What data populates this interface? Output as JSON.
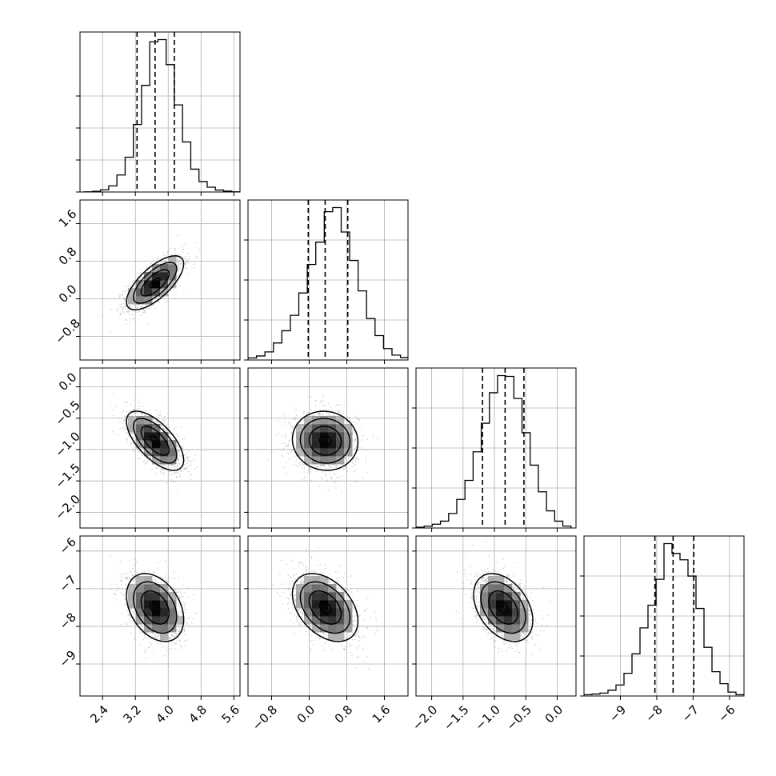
{
  "chart_data": {
    "type": "corner",
    "grid": true,
    "parameters": [
      {
        "range": [
          1.85,
          5.75
        ],
        "ticks": [
          2.4,
          3.2,
          4.0,
          4.8,
          5.6
        ],
        "tick_labels": [
          "2.4",
          "3.2",
          "4.0",
          "4.8",
          "5.6"
        ],
        "quantiles": [
          3.24,
          3.68,
          4.15
        ],
        "hist_bins": [
          1.95,
          2.15,
          2.35,
          2.55,
          2.75,
          2.95,
          3.15,
          3.35,
          3.55,
          3.75,
          3.95,
          4.15,
          4.35,
          4.55,
          4.75,
          4.95,
          5.15,
          5.35,
          5.55,
          5.75
        ],
        "hist_counts": [
          1,
          3,
          10,
          28,
          78,
          160,
          310,
          490,
          690,
          700,
          585,
          400,
          230,
          105,
          48,
          22,
          9,
          4,
          1
        ],
        "hist_ticks": [
          0.2,
          0.4,
          0.6
        ]
      },
      {
        "range": [
          -1.3,
          2.1
        ],
        "ticks": [
          -0.8,
          0.0,
          0.8,
          1.6
        ],
        "tick_labels": [
          "−0.8",
          "0.0",
          "0.8",
          "1.6"
        ],
        "quantiles": [
          -0.02,
          0.34,
          0.82
        ],
        "hist_bins": [
          -1.3,
          -1.12,
          -0.94,
          -0.76,
          -0.58,
          -0.4,
          -0.22,
          -0.04,
          0.14,
          0.32,
          0.5,
          0.68,
          0.86,
          1.04,
          1.22,
          1.4,
          1.58,
          1.76,
          1.94,
          2.12
        ],
        "hist_counts": [
          5,
          10,
          20,
          42,
          72,
          110,
          165,
          235,
          290,
          365,
          375,
          315,
          245,
          170,
          102,
          60,
          28,
          12,
          6
        ],
        "hist_ticks": [
          0.25,
          0.5,
          0.75
        ]
      },
      {
        "range": [
          -2.25,
          0.3
        ],
        "ticks": [
          -2.0,
          -1.5,
          -1.0,
          -0.5,
          0.0
        ],
        "tick_labels": [
          "−2.0",
          "−1.5",
          "−1.0",
          "−0.5",
          "0.0"
        ],
        "quantiles": [
          -1.19,
          -0.83,
          -0.53
        ],
        "hist_bins": [
          -2.25,
          -2.12,
          -1.99,
          -1.86,
          -1.73,
          -1.6,
          -1.47,
          -1.34,
          -1.21,
          -1.08,
          -0.95,
          -0.82,
          -0.69,
          -0.56,
          -0.43,
          -0.3,
          -0.17,
          -0.04,
          0.09,
          0.22
        ],
        "hist_counts": [
          2,
          5,
          10,
          18,
          38,
          75,
          125,
          200,
          275,
          355,
          400,
          398,
          340,
          250,
          165,
          95,
          45,
          18,
          5
        ],
        "hist_ticks": [
          0.25,
          0.5,
          0.75
        ]
      },
      {
        "range": [
          -10.0,
          -5.6
        ],
        "ticks": [
          -9,
          -8,
          -7,
          -6
        ],
        "tick_labels": [
          "−9",
          "−8",
          "−7",
          "−6"
        ],
        "ylim": [
          -9.85,
          -5.6
        ],
        "quantiles": [
          -8.05,
          -7.55,
          -6.98
        ],
        "hist_bins": [
          -10.0,
          -9.78,
          -9.56,
          -9.34,
          -9.12,
          -8.9,
          -8.68,
          -8.46,
          -8.24,
          -8.02,
          -7.8,
          -7.58,
          -7.36,
          -7.14,
          -6.92,
          -6.7,
          -6.48,
          -6.26,
          -6.04,
          -5.82,
          -5.6
        ],
        "hist_counts": [
          4,
          6,
          9,
          18,
          34,
          70,
          130,
          210,
          280,
          360,
          470,
          440,
          420,
          370,
          270,
          150,
          75,
          38,
          12,
          4
        ],
        "hist_ticks": [
          0.25,
          0.5,
          0.75
        ]
      }
    ],
    "pairs": [
      {
        "x": 0,
        "y": 1,
        "mean": [
          3.68,
          0.34
        ],
        "sd": [
          0.34,
          0.28
        ],
        "rho": 0.7
      },
      {
        "x": 0,
        "y": 2,
        "mean": [
          3.68,
          -0.86
        ],
        "sd": [
          0.34,
          0.23
        ],
        "rho": -0.65
      },
      {
        "x": 1,
        "y": 2,
        "mean": [
          0.34,
          -0.86
        ],
        "sd": [
          0.34,
          0.23
        ],
        "rho": -0.05
      },
      {
        "x": 0,
        "y": 3,
        "mean": [
          3.68,
          -7.5
        ],
        "sd": [
          0.34,
          0.44
        ],
        "rho": -0.35
      },
      {
        "x": 1,
        "y": 3,
        "mean": [
          0.34,
          -7.5
        ],
        "sd": [
          0.34,
          0.44
        ],
        "rho": -0.4
      },
      {
        "x": 2,
        "y": 3,
        "mean": [
          -0.86,
          -7.5
        ],
        "sd": [
          0.23,
          0.44
        ],
        "rho": -0.38
      }
    ]
  }
}
